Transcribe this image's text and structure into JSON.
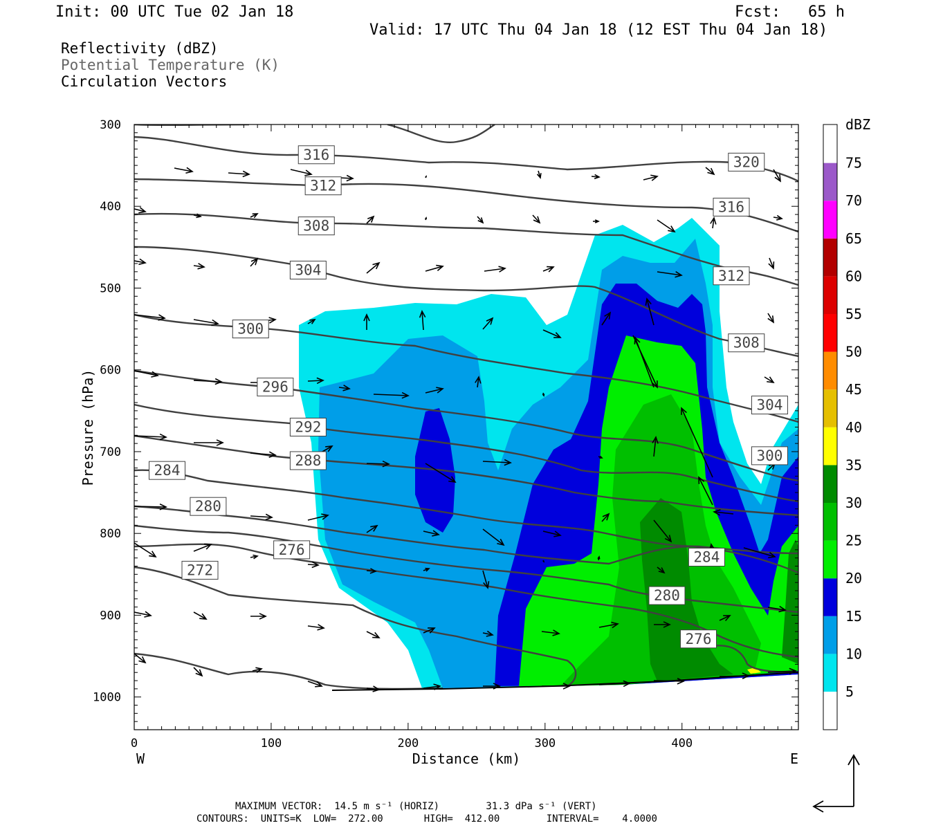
{
  "header": {
    "init": "Init: 00 UTC Tue 02 Jan 18",
    "fcst": "Fcst:   65 h",
    "valid": "Valid: 17 UTC Thu 04 Jan 18 (12 EST Thu 04 Jan 18)"
  },
  "legend": {
    "reflectivity": "Reflectivity (dBZ)",
    "potential_temperature": "Potential Temperature (K)",
    "vectors": "Circulation Vectors"
  },
  "footer": {
    "max_vector": "MAXIMUM VECTOR:  14.5 m s⁻¹ (HORIZ)        31.3 dPa s⁻¹ (VERT)",
    "contours": "CONTOURS:  UNITS=K  LOW=  272.00       HIGH=  412.00        INTERVAL=    4.0000"
  },
  "colors": {
    "theta_contour": "#404040",
    "shade_5": "#00e5ee",
    "shade_10": "#009ee8",
    "shade_15": "#0000dc",
    "shade_20": "#00ee00",
    "shade_25": "#00bf00",
    "shade_30": "#008b00",
    "shade_35": "#ffff00",
    "shade_40": "#e5bf00",
    "shade_45": "#ff8c00",
    "shade_50": "#ff0000",
    "shade_55": "#dc0000",
    "shade_60": "#b20000",
    "shade_65": "#ff00ff",
    "shade_70": "#9b59c9"
  },
  "chart_data": {
    "type": "cross-section",
    "xlabel": "Distance (km)",
    "ylabel": "Pressure (hPa)",
    "xlim": [
      0,
      485
    ],
    "ylim": [
      1040,
      300
    ],
    "x_ticks": [
      0,
      100,
      200,
      300,
      400
    ],
    "y_ticks": [
      300,
      400,
      500,
      600,
      700,
      800,
      900,
      1000
    ],
    "x_end_labels": {
      "left": "W",
      "right": "E"
    },
    "colorbar": {
      "unit": "dBZ",
      "levels": [
        5,
        10,
        15,
        20,
        25,
        30,
        35,
        40,
        45,
        50,
        55,
        60,
        65,
        70,
        75
      ]
    },
    "theta_labels": [
      {
        "text": "316",
        "x": 133,
        "p": 337
      },
      {
        "text": "312",
        "x": 138,
        "p": 375
      },
      {
        "text": "308",
        "x": 133,
        "p": 424
      },
      {
        "text": "304",
        "x": 127,
        "p": 478
      },
      {
        "text": "300",
        "x": 85,
        "p": 550
      },
      {
        "text": "296",
        "x": 103,
        "p": 621
      },
      {
        "text": "292",
        "x": 127,
        "p": 670
      },
      {
        "text": "288",
        "x": 127,
        "p": 711
      },
      {
        "text": "284",
        "x": 24,
        "p": 723
      },
      {
        "text": "280",
        "x": 54,
        "p": 767
      },
      {
        "text": "276",
        "x": 115,
        "p": 820
      },
      {
        "text": "272",
        "x": 48,
        "p": 845
      },
      {
        "text": "320",
        "x": 447,
        "p": 346
      },
      {
        "text": "316",
        "x": 436,
        "p": 401
      },
      {
        "text": "312",
        "x": 436,
        "p": 485
      },
      {
        "text": "308",
        "x": 447,
        "p": 567
      },
      {
        "text": "304",
        "x": 464,
        "p": 643
      },
      {
        "text": "300",
        "x": 464,
        "p": 705
      },
      {
        "text": "284",
        "x": 418,
        "p": 829
      },
      {
        "text": "280",
        "x": 389,
        "p": 876
      },
      {
        "text": "276",
        "x": 412,
        "p": 929
      }
    ]
  }
}
